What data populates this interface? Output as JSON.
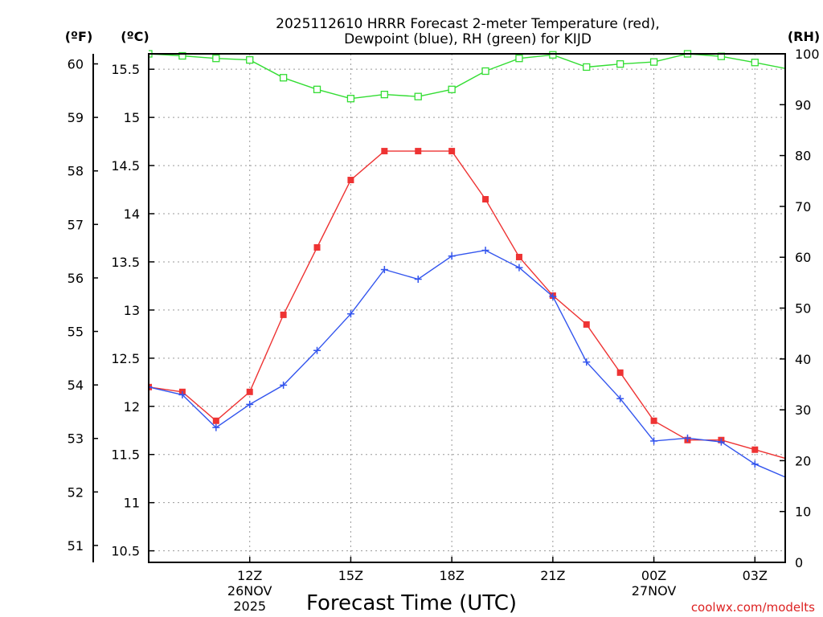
{
  "chart_data": {
    "type": "line",
    "title_line1": "2025112610 HRRR Forecast 2-meter Temperature (red),",
    "title_line2": "Dewpoint (blue), RH (green) for KIJD",
    "xlabel": "Forecast Time (UTC)",
    "credit": "coolwx.com/modelts",
    "axis_units": {
      "fahrenheit": "(ºF)",
      "celsius": "(ºC)",
      "rh": "(RH)"
    },
    "x_hours": [
      9,
      10,
      11,
      12,
      13,
      14,
      15,
      16,
      17,
      18,
      19,
      20,
      21,
      22,
      23,
      24,
      25,
      26,
      27,
      28
    ],
    "x_range": [
      9,
      27.9
    ],
    "x_ticks": [
      {
        "hour": 12,
        "label": "12Z",
        "sub1": "26NOV",
        "sub2": "2025"
      },
      {
        "hour": 15,
        "label": "15Z",
        "sub1": "",
        "sub2": ""
      },
      {
        "hour": 18,
        "label": "18Z",
        "sub1": "",
        "sub2": ""
      },
      {
        "hour": 21,
        "label": "21Z",
        "sub1": "",
        "sub2": ""
      },
      {
        "hour": 24,
        "label": "00Z",
        "sub1": "27NOV",
        "sub2": ""
      },
      {
        "hour": 27,
        "label": "03Z",
        "sub1": "",
        "sub2": ""
      }
    ],
    "celsius_range": [
      10.38,
      15.66
    ],
    "celsius_ticks": [
      10.5,
      11,
      11.5,
      12,
      12.5,
      13,
      13.5,
      14,
      14.5,
      15,
      15.5
    ],
    "celsius_tick_labels": [
      "10.5",
      "11",
      "11.5",
      "12",
      "12.5",
      "13",
      "13.5",
      "14",
      "14.5",
      "15",
      "15.5"
    ],
    "fahrenheit_ticks": [
      51,
      52,
      53,
      54,
      55,
      56,
      57,
      58,
      59,
      60
    ],
    "fahrenheit_tick_labels": [
      "51",
      "52",
      "53",
      "54",
      "55",
      "56",
      "57",
      "58",
      "59",
      "60"
    ],
    "rh_range": [
      0,
      100
    ],
    "rh_ticks": [
      0,
      10,
      20,
      30,
      40,
      50,
      60,
      70,
      80,
      90,
      100
    ],
    "rh_tick_labels": [
      "0",
      "10",
      "20",
      "30",
      "40",
      "50",
      "60",
      "70",
      "80",
      "90",
      "100"
    ],
    "series": [
      {
        "name": "2-meter Temperature",
        "axis": "celsius",
        "color": "#ee3333",
        "marker": "filled-square",
        "values": [
          12.2,
          12.15,
          11.85,
          12.15,
          12.95,
          13.65,
          14.35,
          14.65,
          14.65,
          14.65,
          14.15,
          13.55,
          13.15,
          12.85,
          12.35,
          11.85,
          11.65,
          11.65,
          11.55,
          11.45
        ]
      },
      {
        "name": "Dewpoint",
        "axis": "celsius",
        "color": "#3355ee",
        "marker": "plus",
        "values": [
          12.2,
          12.12,
          11.78,
          12.02,
          12.22,
          12.58,
          12.96,
          13.42,
          13.32,
          13.56,
          13.62,
          13.44,
          13.14,
          12.46,
          12.08,
          11.64,
          11.67,
          11.63,
          11.4,
          11.25
        ]
      },
      {
        "name": "RH",
        "axis": "rh",
        "color": "#33dd33",
        "marker": "open-square",
        "values": [
          100,
          99.6,
          99.1,
          98.8,
          95.3,
          93.0,
          91.2,
          92.0,
          91.6,
          93.0,
          96.6,
          99.1,
          99.8,
          97.4,
          98.0,
          98.4,
          100,
          99.5,
          98.3,
          97.0
        ]
      }
    ]
  }
}
